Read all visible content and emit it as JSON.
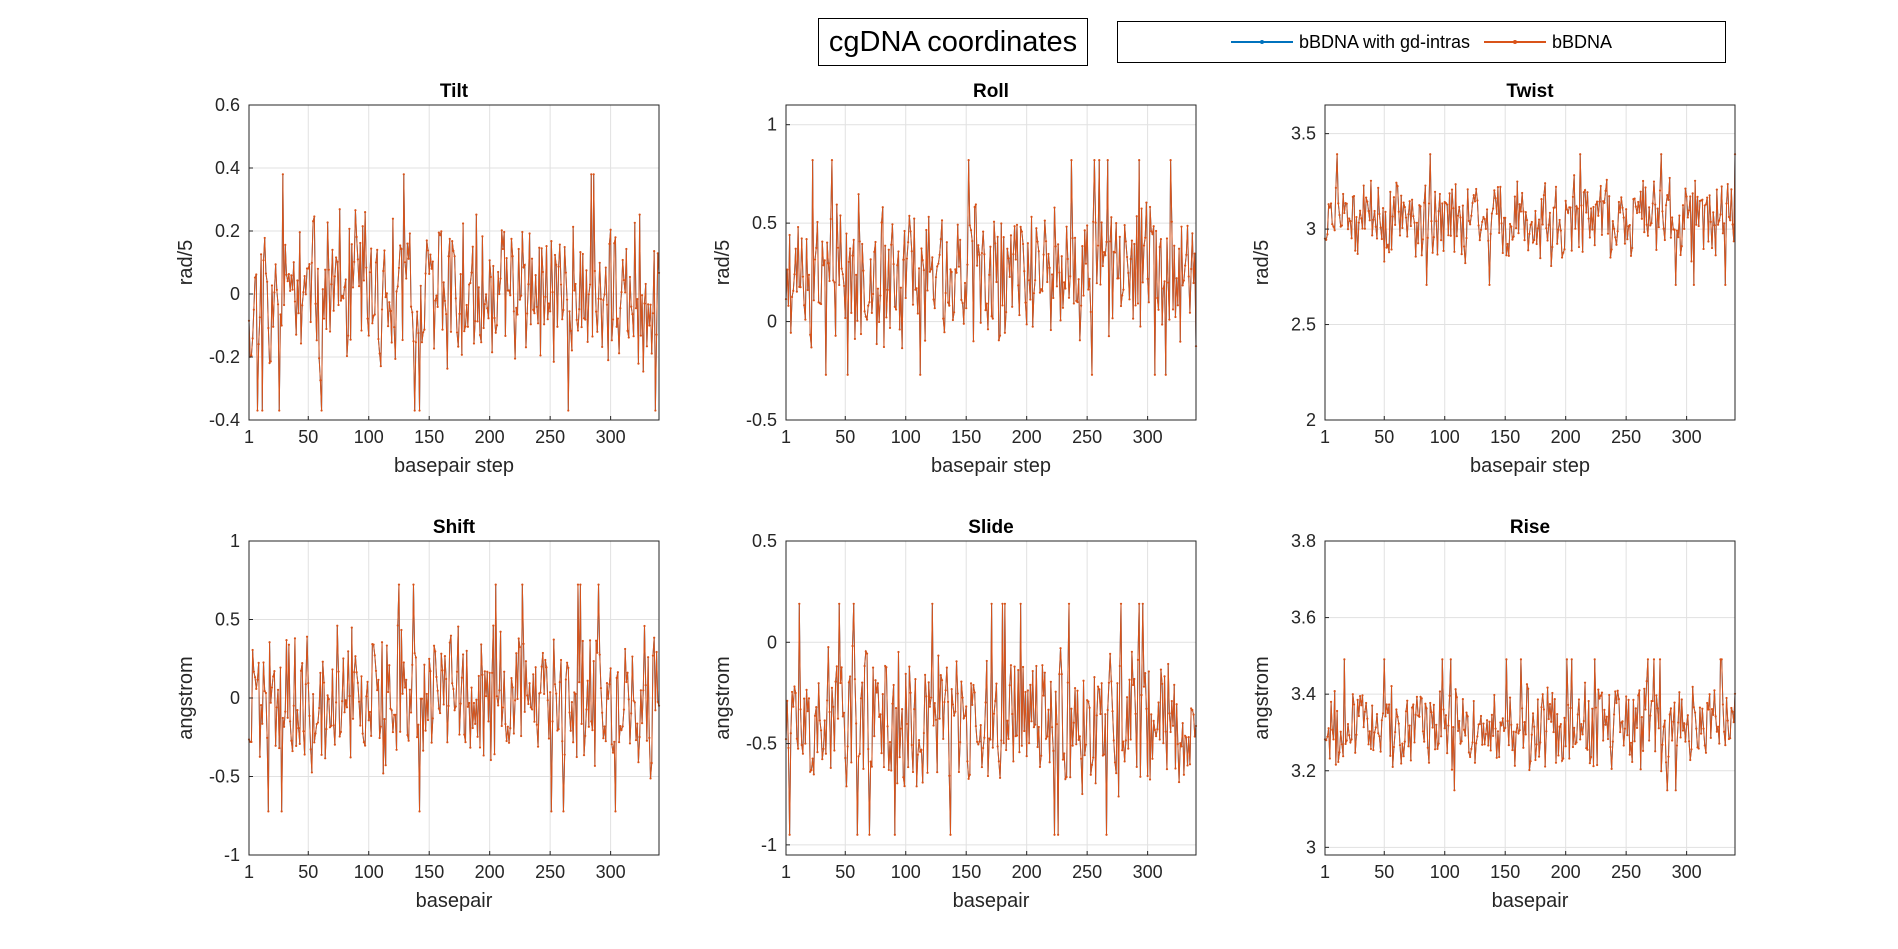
{
  "figure": {
    "title": "cgDNA coordinates",
    "legend": [
      {
        "label": "bBDNA with gd-intras",
        "color": "#0072BD"
      },
      {
        "label": "bBDNA",
        "color": "#D95319"
      }
    ]
  },
  "chart_data": [
    {
      "type": "line",
      "title": "Tilt",
      "xlabel": "basepair step",
      "ylabel": "rad/5",
      "xlim": [
        1,
        340
      ],
      "ylim": [
        -0.4,
        0.6
      ],
      "xticks": [
        1,
        50,
        100,
        150,
        200,
        250,
        300
      ],
      "yticks": [
        -0.4,
        -0.2,
        0,
        0.2,
        0.4,
        0.6
      ],
      "ytick_labels": [
        "-0.4",
        "-0.2",
        "0",
        "0.2",
        "0.4",
        "0.6"
      ],
      "series": [
        {
          "name": "bBDNA with gd-intras",
          "color": "#0072BD",
          "y": []
        },
        {
          "name": "bBDNA",
          "color": "#D95319",
          "y": []
        }
      ],
      "grid": true
    },
    {
      "type": "line",
      "title": "Roll",
      "xlabel": "basepair step",
      "ylabel": "rad/5",
      "xlim": [
        1,
        340
      ],
      "ylim": [
        -0.5,
        1.1
      ],
      "xticks": [
        1,
        50,
        100,
        150,
        200,
        250,
        300
      ],
      "yticks": [
        -0.5,
        0,
        0.5,
        1
      ],
      "ytick_labels": [
        "-0.5",
        "0",
        "0.5",
        "1"
      ],
      "series": [
        {
          "name": "bBDNA with gd-intras",
          "color": "#0072BD",
          "y": []
        },
        {
          "name": "bBDNA",
          "color": "#D95319",
          "y": []
        }
      ],
      "grid": true
    },
    {
      "type": "line",
      "title": "Twist",
      "xlabel": "basepair step",
      "ylabel": "rad/5",
      "xlim": [
        1,
        340
      ],
      "ylim": [
        2,
        3.65
      ],
      "xticks": [
        1,
        50,
        100,
        150,
        200,
        250,
        300
      ],
      "yticks": [
        2,
        2.5,
        3,
        3.5
      ],
      "ytick_labels": [
        "2",
        "2.5",
        "3",
        "3.5"
      ],
      "series": [
        {
          "name": "bBDNA with gd-intras",
          "color": "#0072BD",
          "y": []
        },
        {
          "name": "bBDNA",
          "color": "#D95319",
          "y": []
        }
      ],
      "grid": true
    },
    {
      "type": "line",
      "title": "Shift",
      "xlabel": "basepair",
      "ylabel": "angstrom",
      "xlim": [
        1,
        340
      ],
      "ylim": [
        -1,
        1
      ],
      "xticks": [
        1,
        50,
        100,
        150,
        200,
        250,
        300
      ],
      "yticks": [
        -1,
        -0.5,
        0,
        0.5,
        1
      ],
      "ytick_labels": [
        "-1",
        "-0.5",
        "0",
        "0.5",
        "1"
      ],
      "series": [
        {
          "name": "bBDNA with gd-intras",
          "color": "#0072BD",
          "y": []
        },
        {
          "name": "bBDNA",
          "color": "#D95319",
          "y": []
        }
      ],
      "grid": true
    },
    {
      "type": "line",
      "title": "Slide",
      "xlabel": "basepair",
      "ylabel": "angstrom",
      "xlim": [
        1,
        340
      ],
      "ylim": [
        -1.05,
        0.5
      ],
      "xticks": [
        1,
        50,
        100,
        150,
        200,
        250,
        300
      ],
      "yticks": [
        -1,
        -0.5,
        0,
        0.5
      ],
      "ytick_labels": [
        "-1",
        "-0.5",
        "0",
        "0.5"
      ],
      "series": [
        {
          "name": "bBDNA with gd-intras",
          "color": "#0072BD",
          "y": []
        },
        {
          "name": "bBDNA",
          "color": "#D95319",
          "y": []
        }
      ],
      "grid": true
    },
    {
      "type": "line",
      "title": "Rise",
      "xlabel": "basepair",
      "ylabel": "angstrom",
      "xlim": [
        1,
        340
      ],
      "ylim": [
        2.98,
        3.8
      ],
      "xticks": [
        1,
        50,
        100,
        150,
        200,
        250,
        300
      ],
      "yticks": [
        3,
        3.2,
        3.4,
        3.6,
        3.8
      ],
      "ytick_labels": [
        "3",
        "3.2",
        "3.4",
        "3.6",
        "3.8"
      ],
      "series": [
        {
          "name": "bBDNA with gd-intras",
          "color": "#0072BD",
          "y": []
        },
        {
          "name": "bBDNA",
          "color": "#D95319",
          "y": []
        }
      ],
      "grid": true
    }
  ]
}
